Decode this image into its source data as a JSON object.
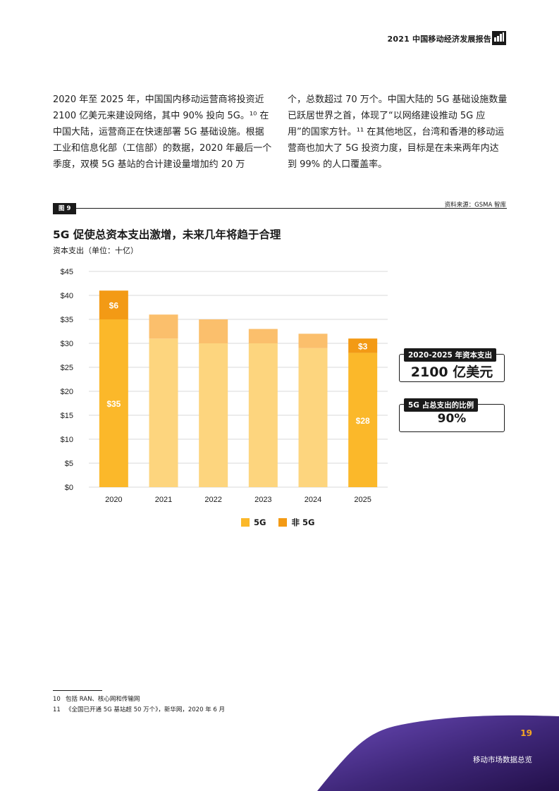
{
  "header": {
    "title": "2021 中国移动经济发展报告",
    "logo_icon": "gsma-intelligence-logo-icon"
  },
  "body": {
    "left_column": "2020 年至 2025 年，中国国内移动运营商将投资近 2100 亿美元来建设网络，其中 90% 投向 5G。¹⁰ 在中国大陆，运营商正在快速部署 5G 基础设施。根据工业和信息化部（工信部）的数据，2020 年最后一个季度，双模 5G 基站的合计建设量增加约 20 万",
    "right_column": "个，总数超过 70 万个。中国大陆的 5G 基础设施数量已跃居世界之首，体现了“以网络建设推动 5G 应用”的国家方针。¹¹ 在其他地区，台湾和香港的移动运营商也加大了 5G 投资力度，目标是在未来两年内达到 99% 的人口覆盖率。"
  },
  "figure": {
    "tag": "图 9",
    "source": "资料来源：GSMA 智库",
    "title": "5G 促使总资本支出激增，未来几年将趋于合理",
    "y_unit_label": "资本支出（单位：十亿）"
  },
  "chart_data": {
    "type": "bar",
    "stacked": true,
    "title": "5G 促使总资本支出激增，未来几年将趋于合理",
    "ylabel": "资本支出（单位：十亿）",
    "xlabel": "",
    "categories": [
      "2020",
      "2021",
      "2022",
      "2023",
      "2024",
      "2025"
    ],
    "series": [
      {
        "name": "5G",
        "values": [
          35,
          31,
          30,
          30,
          29,
          28
        ],
        "color": "#fbb82a",
        "faded_color": "#fdd57e"
      },
      {
        "name": "非 5G",
        "values": [
          6,
          5,
          5,
          3,
          3,
          3
        ],
        "color": "#f39a15",
        "faded_color": "#fbbf6c"
      }
    ],
    "highlighted_categories": [
      "2020",
      "2025"
    ],
    "data_labels": [
      {
        "category": "2020",
        "series": "5G",
        "text": "$35"
      },
      {
        "category": "2020",
        "series": "非 5G",
        "text": "$6"
      },
      {
        "category": "2025",
        "series": "5G",
        "text": "$28"
      },
      {
        "category": "2025",
        "series": "非 5G",
        "text": "$3"
      }
    ],
    "yticks": [
      0,
      5,
      10,
      15,
      20,
      25,
      30,
      35,
      40,
      45
    ],
    "ytick_labels": [
      "$0",
      "$5",
      "$10",
      "$15",
      "$20",
      "$25",
      "$30",
      "$35",
      "$40",
      "$45"
    ],
    "ylim": [
      0,
      45
    ],
    "grid": true,
    "legend_position": "bottom-center"
  },
  "legend": [
    {
      "label": "5G",
      "color": "#fbb82a"
    },
    {
      "label": "非 5G",
      "color": "#f39a15"
    }
  ],
  "callouts": [
    {
      "label": "2020-2025 年资本支出",
      "value": "2100 亿美元"
    },
    {
      "label": "5G 占总支出的比例",
      "value": "90%"
    }
  ],
  "footnotes": [
    {
      "num": "10",
      "text": "包括 RAN、核心网和传输网"
    },
    {
      "num": "11",
      "text": "《全国已开通 5G 基站超 50 万个》，新华网，2020 年 6 月"
    }
  ],
  "footer": {
    "page_number": "19",
    "section": "移动市场数据总览"
  }
}
